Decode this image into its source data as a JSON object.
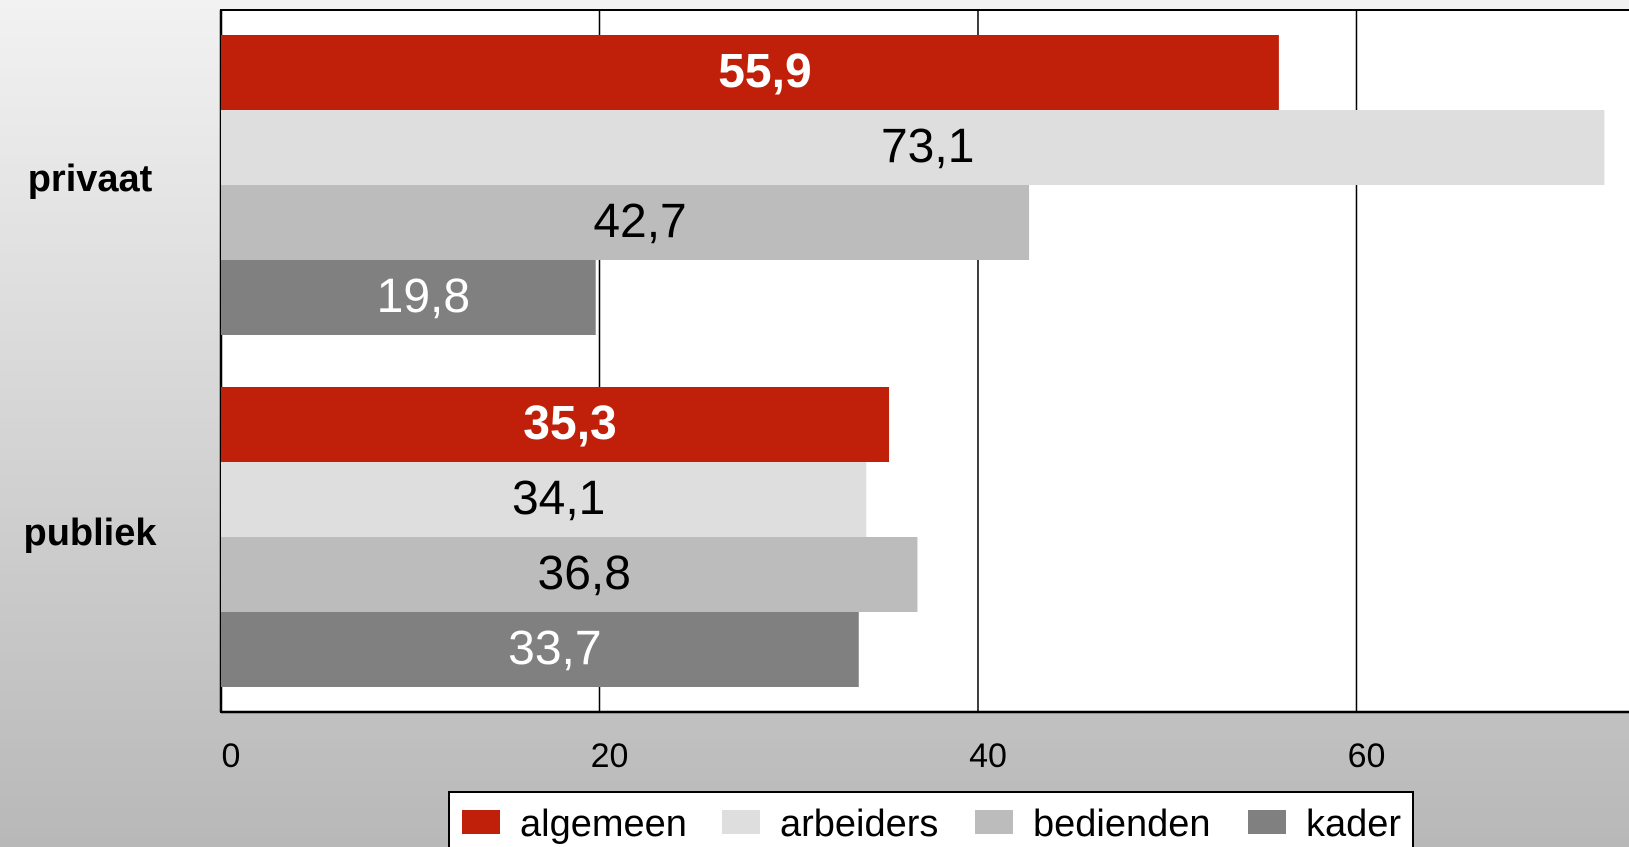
{
  "chart_data": {
    "type": "hbar",
    "categories": [
      "privaat",
      "publiek"
    ],
    "series": [
      {
        "name": "algemeen",
        "color": "#c0200a",
        "label_color": "#ffffff",
        "label_bold": true,
        "values": [
          55.9,
          35.3
        ],
        "value_labels": [
          "55,9",
          "35,3"
        ]
      },
      {
        "name": "arbeiders",
        "color": "#dedede",
        "label_color": "#000000",
        "label_bold": false,
        "values": [
          73.1,
          34.1
        ],
        "value_labels": [
          "73,1",
          "34,1"
        ]
      },
      {
        "name": "bedienden",
        "color": "#bcbcbc",
        "label_color": "#000000",
        "label_bold": false,
        "values": [
          42.7,
          36.8
        ],
        "value_labels": [
          "42,7",
          "36,8"
        ]
      },
      {
        "name": "kader",
        "color": "#808080",
        "label_color": "#ffffff",
        "label_bold": false,
        "values": [
          19.8,
          33.7
        ],
        "value_labels": [
          "19,8",
          "33,7"
        ]
      }
    ],
    "xlim": [
      0,
      74.4
    ],
    "xticks": [
      0,
      20,
      40,
      60
    ],
    "grid": true,
    "legend": "bottom"
  }
}
